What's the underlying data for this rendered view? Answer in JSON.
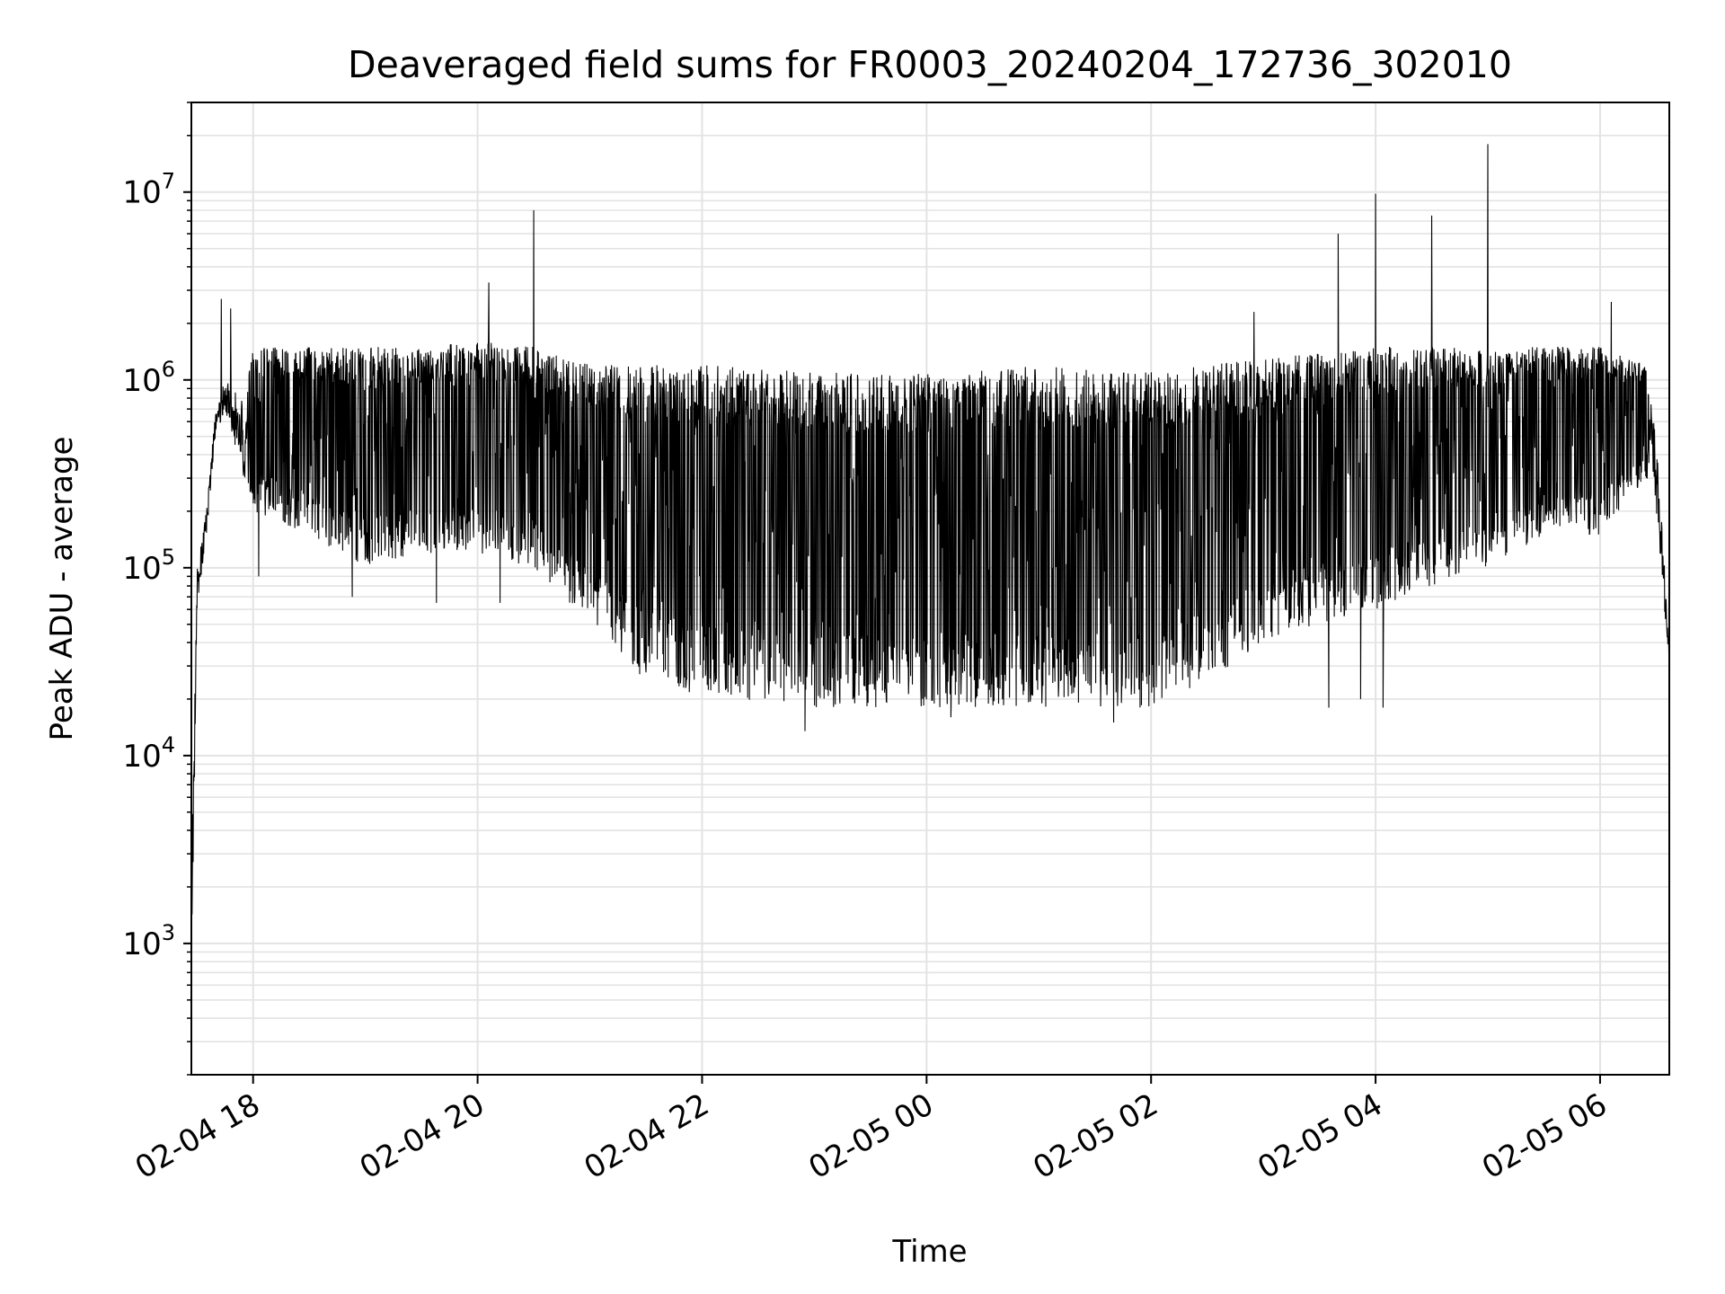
{
  "chart_data": {
    "type": "line",
    "title": "Deaveraged field sums for FR0003_20240204_172736_302010",
    "xlabel": "Time",
    "ylabel": "Peak ADU - average",
    "yscale": "log",
    "ylim": [
      200,
      30000000
    ],
    "xlim": [
      "2024-02-04 17:27",
      "2024-02-05 06:37"
    ],
    "grid": true,
    "legend": "none",
    "line_color": "#000000",
    "x_ticks": [
      {
        "value": "2024-02-04 18:00",
        "label": "02-04 18"
      },
      {
        "value": "2024-02-04 20:00",
        "label": "02-04 20"
      },
      {
        "value": "2024-02-04 22:00",
        "label": "02-04 22"
      },
      {
        "value": "2024-02-05 00:00",
        "label": "02-05 00"
      },
      {
        "value": "2024-02-05 02:00",
        "label": "02-05 02"
      },
      {
        "value": "2024-02-05 04:00",
        "label": "02-05 04"
      },
      {
        "value": "2024-02-05 06:00",
        "label": "02-05 06"
      }
    ],
    "y_ticks": [
      {
        "value": 1000,
        "base": "10",
        "exp": "3"
      },
      {
        "value": 10000,
        "base": "10",
        "exp": "4"
      },
      {
        "value": 100000,
        "base": "10",
        "exp": "5"
      },
      {
        "value": 1000000,
        "base": "10",
        "exp": "6"
      },
      {
        "value": 10000000,
        "base": "10",
        "exp": "7"
      }
    ],
    "series": [
      {
        "envelope": [
          {
            "t": "2024-02-04 17:27",
            "high": 2000,
            "low": 500
          },
          {
            "t": "2024-02-04 17:30",
            "high": 100000,
            "low": 60000
          },
          {
            "t": "2024-02-04 17:35",
            "high": 200000,
            "low": 150000
          },
          {
            "t": "2024-02-04 17:40",
            "high": 700000,
            "low": 500000
          },
          {
            "t": "2024-02-04 17:45",
            "high": 1000000,
            "low": 700000
          },
          {
            "t": "2024-02-04 17:55",
            "high": 800000,
            "low": 300000
          },
          {
            "t": "2024-02-04 18:00",
            "high": 1500000,
            "low": 200000
          },
          {
            "t": "2024-02-04 18:30",
            "high": 1500000,
            "low": 150000
          },
          {
            "t": "2024-02-04 19:00",
            "high": 1500000,
            "low": 100000
          },
          {
            "t": "2024-02-04 19:30",
            "high": 1500000,
            "low": 120000
          },
          {
            "t": "2024-02-04 20:00",
            "high": 1600000,
            "low": 120000
          },
          {
            "t": "2024-02-04 20:30",
            "high": 1500000,
            "low": 100000
          },
          {
            "t": "2024-02-04 21:00",
            "high": 1200000,
            "low": 50000
          },
          {
            "t": "2024-02-04 21:30",
            "high": 1200000,
            "low": 25000
          },
          {
            "t": "2024-02-04 22:00",
            "high": 1200000,
            "low": 20000
          },
          {
            "t": "2024-02-04 23:00",
            "high": 1100000,
            "low": 18000
          },
          {
            "t": "2024-02-05 00:00",
            "high": 1100000,
            "low": 18000
          },
          {
            "t": "2024-02-05 01:00",
            "high": 1200000,
            "low": 18000
          },
          {
            "t": "2024-02-05 02:00",
            "high": 1100000,
            "low": 18000
          },
          {
            "t": "2024-02-05 02:30",
            "high": 1200000,
            "low": 25000
          },
          {
            "t": "2024-02-05 03:00",
            "high": 1300000,
            "low": 40000
          },
          {
            "t": "2024-02-05 03:30",
            "high": 1400000,
            "low": 50000
          },
          {
            "t": "2024-02-05 04:00",
            "high": 1500000,
            "low": 60000
          },
          {
            "t": "2024-02-05 04:30",
            "high": 1500000,
            "low": 80000
          },
          {
            "t": "2024-02-05 05:00",
            "high": 1500000,
            "low": 100000
          },
          {
            "t": "2024-02-05 05:30",
            "high": 1500000,
            "low": 150000
          },
          {
            "t": "2024-02-05 06:00",
            "high": 1500000,
            "low": 150000
          },
          {
            "t": "2024-02-05 06:25",
            "high": 1200000,
            "low": 300000
          },
          {
            "t": "2024-02-05 06:30",
            "high": 500000,
            "low": 200000
          },
          {
            "t": "2024-02-05 06:37",
            "high": 40000,
            "low": 30000
          }
        ],
        "spikes": [
          {
            "t": "2024-02-04 17:43",
            "y": 2700000
          },
          {
            "t": "2024-02-04 17:48",
            "y": 2400000
          },
          {
            "t": "2024-02-04 20:06",
            "y": 3300000
          },
          {
            "t": "2024-02-04 20:30",
            "y": 8000000
          },
          {
            "t": "2024-02-05 02:55",
            "y": 2300000
          },
          {
            "t": "2024-02-05 03:40",
            "y": 6000000
          },
          {
            "t": "2024-02-05 04:00",
            "y": 9800000
          },
          {
            "t": "2024-02-05 04:30",
            "y": 7500000
          },
          {
            "t": "2024-02-05 05:00",
            "y": 18000000
          },
          {
            "t": "2024-02-05 06:06",
            "y": 2600000
          }
        ],
        "dips": [
          {
            "t": "2024-02-04 18:03",
            "y": 90000
          },
          {
            "t": "2024-02-04 18:53",
            "y": 70000
          },
          {
            "t": "2024-02-04 19:38",
            "y": 65000
          },
          {
            "t": "2024-02-04 20:12",
            "y": 65000
          },
          {
            "t": "2024-02-04 22:55",
            "y": 13500
          },
          {
            "t": "2024-02-05 00:13",
            "y": 16000
          },
          {
            "t": "2024-02-05 01:40",
            "y": 15000
          },
          {
            "t": "2024-02-05 03:35",
            "y": 18000
          },
          {
            "t": "2024-02-05 03:52",
            "y": 20000
          },
          {
            "t": "2024-02-05 04:04",
            "y": 18000
          }
        ]
      }
    ]
  }
}
